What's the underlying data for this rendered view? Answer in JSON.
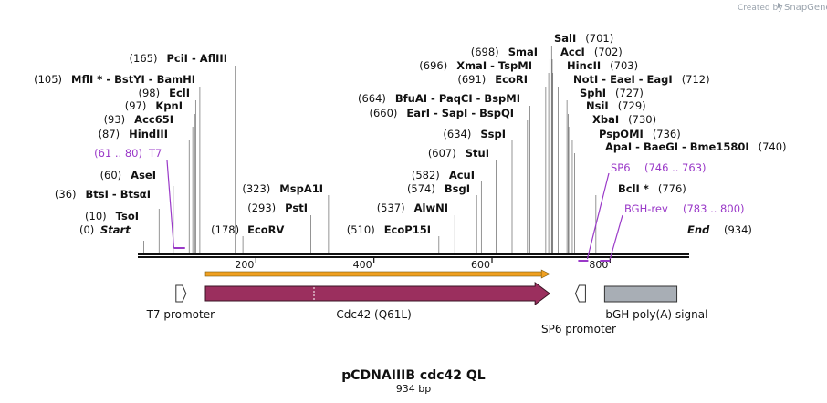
{
  "credit": {
    "text": "Created by",
    "brand": "SnapGene"
  },
  "title": "pCDNAIIIB cdc42 QL",
  "length_label": "934 bp",
  "sequence_length": 934,
  "ticks": [
    200,
    400,
    600,
    800
  ],
  "tick_labels": [
    "200",
    "400",
    "600",
    "800"
  ],
  "start_label": "Start",
  "start_pos": "(0)",
  "end_label": "End",
  "end_pos": "(934)",
  "sites": [
    {
      "name": "TsoI",
      "pos": "(10)",
      "loc": 10
    },
    {
      "name": "BtsI - BtsαI",
      "pos": "(36)",
      "loc": 36
    },
    {
      "name": "AseI",
      "pos": "(60)",
      "loc": 60
    },
    {
      "name": "HindIII",
      "pos": "(87)",
      "loc": 87
    },
    {
      "name": "Acc65I",
      "pos": "(93)",
      "loc": 93
    },
    {
      "name": "KpnI",
      "pos": "(97)",
      "loc": 97
    },
    {
      "name": "EclI",
      "pos": "(98)",
      "loc": 98
    },
    {
      "name": "MflI * - BstYI - BamHI",
      "pos": "(105)",
      "loc": 105
    },
    {
      "name": "PciI - AflIII",
      "pos": "(165)",
      "loc": 165
    },
    {
      "name": "EcoRV",
      "pos": "(178)",
      "loc": 178
    },
    {
      "name": "PstI",
      "pos": "(293)",
      "loc": 293
    },
    {
      "name": "MspA1I",
      "pos": "(323)",
      "loc": 323
    },
    {
      "name": "EcoP15I",
      "pos": "(510)",
      "loc": 510
    },
    {
      "name": "AlwNI",
      "pos": "(537)",
      "loc": 537
    },
    {
      "name": "BsgI",
      "pos": "(574)",
      "loc": 574
    },
    {
      "name": "AcuI",
      "pos": "(582)",
      "loc": 582
    },
    {
      "name": "StuI",
      "pos": "(607)",
      "loc": 607
    },
    {
      "name": "SspI",
      "pos": "(634)",
      "loc": 634
    },
    {
      "name": "EarI - SapI - BspQI",
      "pos": "(660)",
      "loc": 660
    },
    {
      "name": "BfuAI - PaqCI - BspMI",
      "pos": "(664)",
      "loc": 664
    },
    {
      "name": "EcoRI",
      "pos": "(691)",
      "loc": 691
    },
    {
      "name": "XmaI - TspMI",
      "pos": "(696)",
      "loc": 696
    },
    {
      "name": "SmaI",
      "pos": "(698)",
      "loc": 698
    },
    {
      "name": "SalI",
      "pos": "(701)",
      "loc": 701
    },
    {
      "name": "AccI",
      "pos": "(702)",
      "loc": 702
    },
    {
      "name": "HincII",
      "pos": "(703)",
      "loc": 703
    },
    {
      "name": "NotI - EaeI - EagI",
      "pos": "(712)",
      "loc": 712
    },
    {
      "name": "SphI",
      "pos": "(727)",
      "loc": 727
    },
    {
      "name": "NsiI",
      "pos": "(729)",
      "loc": 729
    },
    {
      "name": "XbaI",
      "pos": "(730)",
      "loc": 730
    },
    {
      "name": "PspOMI",
      "pos": "(736)",
      "loc": 736
    },
    {
      "name": "ApaI - BaeGI - Bme1580I",
      "pos": "(740)",
      "loc": 740
    },
    {
      "name": "BclI *",
      "pos": "(776)",
      "loc": 776
    }
  ],
  "primers": [
    {
      "name": "T7",
      "range": "(61 .. 80)",
      "start": 61,
      "end": 80
    },
    {
      "name": "SP6",
      "range": "(746 .. 763)",
      "start": 746,
      "end": 763
    },
    {
      "name": "BGH-rev",
      "range": "(783 .. 800)",
      "start": 783,
      "end": 800
    }
  ],
  "features": [
    {
      "name": "T7 promoter",
      "start": 60,
      "end": 79,
      "type": "promoter",
      "direction": "forward"
    },
    {
      "name": "Cdc42 (Q61L)",
      "start": 116,
      "end": 693,
      "type": "cds",
      "direction": "forward"
    },
    {
      "name": "SP6 promoter",
      "start": 745,
      "end": 763,
      "type": "promoter",
      "direction": "reverse"
    },
    {
      "name": "bGH poly(A) signal",
      "start": 790,
      "end": 914,
      "type": "polyA",
      "direction": "none"
    }
  ],
  "colors": {
    "backbone": "#111111",
    "primer": "#9a39c8",
    "cds": "#9b2f5e",
    "orf_bar": "#f0a020",
    "polyA": "#a8aeb5",
    "promoter": "#ffffff",
    "site_line": "#7a7a7a",
    "credit": "#9aa3ad"
  }
}
